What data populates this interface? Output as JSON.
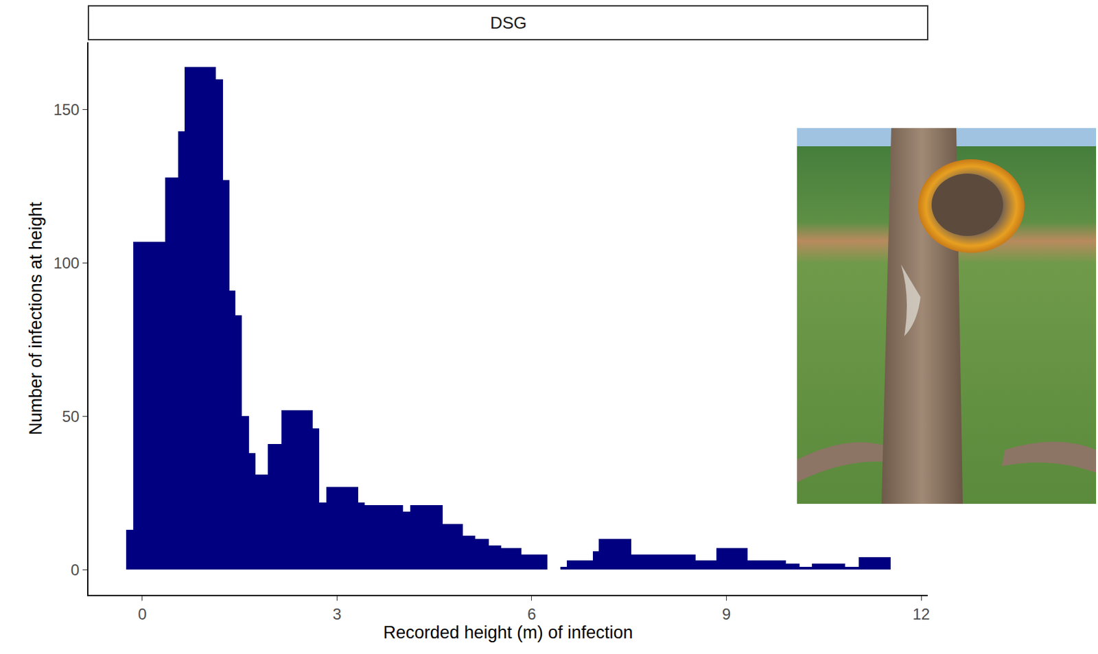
{
  "chart_data": {
    "type": "histogram",
    "title": "DSG",
    "x_label": "Recorded height (m) of infection",
    "y_label": "Number of infections at height",
    "bins": [
      -0.25,
      -0.14,
      0.35,
      0.55,
      0.65,
      1.13,
      1.24,
      1.34,
      1.43,
      1.53,
      1.64,
      1.74,
      1.93,
      2.14,
      2.63,
      2.73,
      2.84,
      3.33,
      3.43,
      4.02,
      4.13,
      4.63,
      4.94,
      5.13,
      5.34,
      5.53,
      5.84,
      6.24,
      6.44,
      6.54,
      6.94,
      7.03,
      7.53,
      8.52,
      8.84,
      9.33,
      9.92,
      10.13,
      10.32,
      10.83,
      11.04,
      11.53
    ],
    "values": [
      13,
      107,
      128,
      143,
      164,
      160,
      127,
      91,
      83,
      50,
      38,
      31,
      41,
      52,
      46,
      22,
      27,
      22,
      21,
      19,
      21,
      15,
      11,
      10,
      8,
      7,
      5,
      0,
      1,
      3,
      6,
      10,
      5,
      3,
      7,
      3,
      2,
      1,
      2,
      1,
      4
    ],
    "color": "#000080",
    "xlim": [
      -0.83,
      12.1
    ],
    "ylim": [
      -8.2,
      172
    ],
    "xticks": [
      0,
      3,
      6,
      9,
      12
    ],
    "yticks": [
      0,
      50,
      100,
      150
    ],
    "grid": false
  }
}
